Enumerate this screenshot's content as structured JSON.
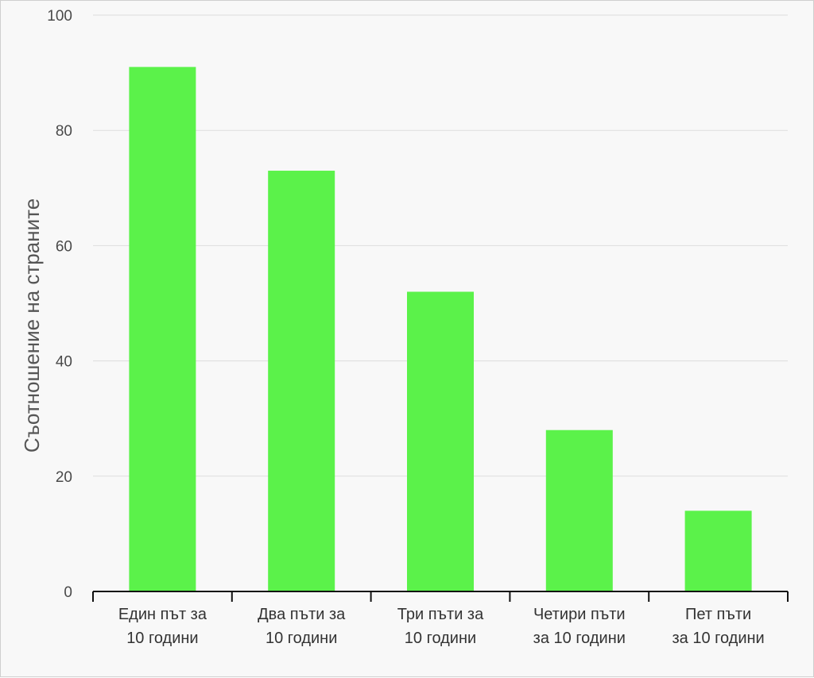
{
  "chart_data": {
    "type": "bar",
    "categories": [
      [
        "Един път за",
        "10 години"
      ],
      [
        "Два пъти за",
        "10 години"
      ],
      [
        "Три пъти за",
        "10 години"
      ],
      [
        "Четири пъти",
        "за 10 години"
      ],
      [
        "Пет пъти",
        "за 10 години"
      ]
    ],
    "values": [
      91,
      73,
      52,
      28,
      14
    ],
    "title": "",
    "xlabel": "",
    "ylabel": "Съотношение на страните",
    "ylim": [
      0,
      100
    ],
    "yticks": [
      0,
      20,
      40,
      60,
      80,
      100
    ],
    "grid": true,
    "legend": "none",
    "colors": {
      "bar": "#5bf24a",
      "grid": "#dddddd",
      "axis": "#111111"
    }
  }
}
